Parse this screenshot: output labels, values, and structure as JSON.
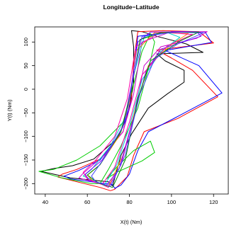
{
  "chart_data": {
    "type": "line",
    "title": "Longitude−Latitude",
    "xlabel": "X(t) (Nm)",
    "ylabel": "Y(t) (Nm)",
    "xlim": [
      35,
      127
    ],
    "ylim": [
      -222,
      132
    ],
    "xticks": [
      40,
      60,
      80,
      100,
      120
    ],
    "xtick_labels": [
      "40",
      "60",
      "80",
      "100",
      "120"
    ],
    "yticks": [
      -200,
      -150,
      -100,
      -50,
      0,
      50,
      100
    ],
    "ytick_labels": [
      "−200",
      "−150",
      "−100",
      "−50",
      "0",
      "50",
      "100"
    ],
    "grid": false,
    "legend": "none",
    "series": [
      {
        "color": "#000000",
        "x": [
          72,
          70,
          52,
          38,
          44,
          53,
          63,
          74,
          79,
          82,
          82,
          81,
          86,
          93,
          107,
          115,
          93,
          97,
          106,
          106,
          98,
          89,
          81,
          76,
          72
        ],
        "y": [
          -205,
          -196,
          -188,
          -174,
          -168,
          -162,
          -148,
          -105,
          -58,
          10,
          90,
          124,
          122,
          112,
          96,
          78,
          75,
          60,
          40,
          15,
          -10,
          -40,
          -95,
          -140,
          -205
        ]
      },
      {
        "color": "#ff0000",
        "x": [
          71,
          66,
          55,
          46,
          48,
          55,
          66,
          77,
          81,
          82,
          84,
          96,
          113,
          120,
          93,
          100,
          110,
          122,
          103,
          87,
          82,
          79,
          73,
          71
        ],
        "y": [
          -215,
          -208,
          -196,
          -186,
          -180,
          -170,
          -148,
          -90,
          -20,
          60,
          122,
          124,
          122,
          98,
          83,
          66,
          40,
          -16,
          -62,
          -90,
          -140,
          -185,
          -212,
          -215
        ]
      },
      {
        "color": "#0000ff",
        "x": [
          73,
          72,
          52,
          49,
          56,
          66,
          75,
          80,
          82,
          84,
          100,
          116,
          119,
          97,
          113,
          124,
          102,
          89,
          84,
          80,
          76,
          73
        ],
        "y": [
          -210,
          -202,
          -190,
          -184,
          -172,
          -150,
          -100,
          -40,
          40,
          112,
          122,
          121,
          99,
          82,
          50,
          -8,
          -60,
          -90,
          -130,
          -180,
          -203,
          -210
        ]
      },
      {
        "color": "#00cd00",
        "x": [
          62,
          48,
          37,
          44,
          55,
          66,
          77,
          82,
          86,
          90,
          92,
          90,
          84,
          76,
          70,
          66,
          62
        ],
        "y": [
          -200,
          -188,
          -174,
          -170,
          -150,
          -120,
          -70,
          10,
          80,
          118,
          100,
          60,
          -40,
          -120,
          -170,
          -200,
          -200
        ]
      },
      {
        "color": "#00cd00",
        "x": [
          69,
          74,
          86,
          92,
          90,
          82,
          74,
          69
        ],
        "y": [
          -190,
          -176,
          -152,
          -134,
          -110,
          -130,
          -165,
          -190
        ]
      },
      {
        "color": "#cc00cc",
        "x": [
          70,
          66,
          56,
          58,
          68,
          77,
          82,
          86,
          100,
          117,
          112,
          95,
          87,
          82,
          76,
          70
        ],
        "y": [
          -208,
          -200,
          -188,
          -178,
          -140,
          -90,
          -10,
          100,
          122,
          122,
          108,
          90,
          50,
          -60,
          -160,
          -208
        ]
      },
      {
        "color": "#00cccc",
        "x": [
          68,
          64,
          58,
          62,
          71,
          78,
          82,
          87,
          98,
          104,
          95,
          86,
          80,
          74,
          68
        ],
        "y": [
          -204,
          -195,
          -184,
          -170,
          -120,
          -60,
          30,
          110,
          120,
          110,
          80,
          20,
          -80,
          -160,
          -204
        ]
      },
      {
        "color": "#ff8800",
        "x": [
          70,
          63,
          60,
          66,
          75,
          80,
          83,
          92,
          108,
          100,
          89,
          83,
          77,
          70
        ],
        "y": [
          -206,
          -196,
          -182,
          -160,
          -100,
          -30,
          80,
          120,
          118,
          95,
          50,
          -40,
          -140,
          -206
        ]
      },
      {
        "color": "#8800ff",
        "x": [
          69,
          61,
          59,
          67,
          77,
          81,
          84,
          90,
          112,
          114,
          95,
          88,
          82,
          75,
          69
        ],
        "y": [
          -204,
          -194,
          -180,
          -150,
          -80,
          10,
          100,
          121,
          122,
          112,
          85,
          40,
          -60,
          -170,
          -204
        ]
      },
      {
        "color": "#ff00aa",
        "x": [
          67,
          60,
          58,
          64,
          73,
          79,
          83,
          95,
          110,
          98,
          86,
          80,
          73,
          67
        ],
        "y": [
          -202,
          -190,
          -176,
          -150,
          -100,
          -20,
          90,
          121,
          116,
          92,
          30,
          -70,
          -165,
          -202
        ]
      },
      {
        "color": "#008800",
        "x": [
          72,
          65,
          60,
          66,
          76,
          81,
          85,
          95,
          113,
          104,
          90,
          84,
          78,
          72
        ],
        "y": [
          -208,
          -198,
          -182,
          -160,
          -90,
          0,
          105,
          120,
          121,
          102,
          60,
          -20,
          -150,
          -208
        ]
      },
      {
        "color": "#4444ff",
        "x": [
          71,
          64,
          62,
          69,
          78,
          82,
          86,
          102,
          115,
          103,
          92,
          85,
          78,
          71
        ],
        "y": [
          -206,
          -196,
          -184,
          -140,
          -70,
          30,
          112,
          121,
          119,
          96,
          64,
          -10,
          -140,
          -206
        ]
      }
    ]
  }
}
